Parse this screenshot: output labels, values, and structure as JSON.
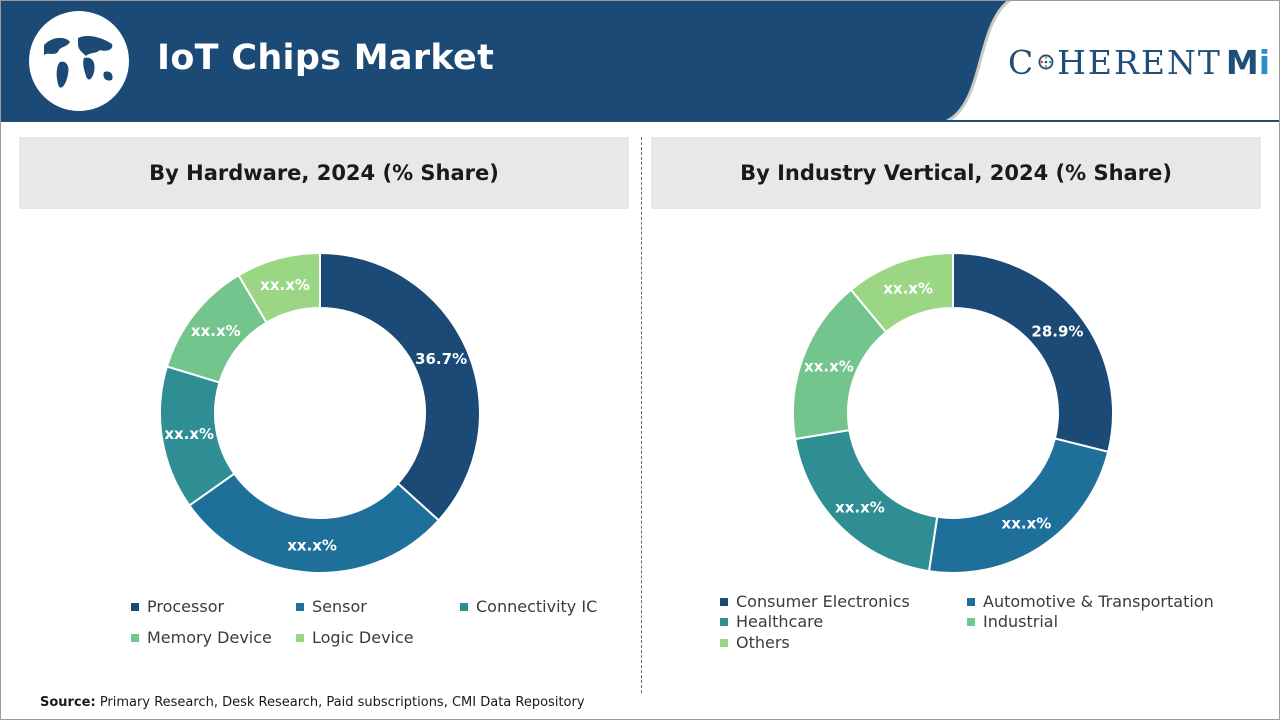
{
  "header": {
    "title": "IoT Chips Market",
    "logo_text_left": "C",
    "logo_text_right": "HERENT",
    "logo_mi_m": "M",
    "logo_mi_i": "i",
    "band_color": "#1b4a77",
    "globe_icon": "world-globe-icon"
  },
  "chart_data": [
    {
      "type": "pie",
      "title": "By Hardware, 2024 (% Share)",
      "categories": [
        "Processor",
        "Sensor",
        "Connectivity IC",
        "Memory Device",
        "Logic Device"
      ],
      "values": [
        36.7,
        28.5,
        14.5,
        11.8,
        8.5
      ],
      "labels": [
        "36.7%",
        "xx.x%",
        "xx.x%",
        "xx.x%",
        "xx.x%"
      ],
      "colors": [
        "#1b4a77",
        "#1f6f9b",
        "#2e8e93",
        "#74c48e",
        "#9bd685"
      ],
      "legend_position": "bottom"
    },
    {
      "type": "pie",
      "title": "By Industry Vertical, 2024 (% Share)",
      "categories": [
        "Consumer Electronics",
        "Automotive & Transportation",
        "Healthcare",
        "Industrial",
        "Others"
      ],
      "values": [
        28.9,
        23.5,
        20.0,
        16.6,
        11.0
      ],
      "labels": [
        "28.9%",
        "xx.x%",
        "xx.x%",
        "xx.x%",
        "xx.x%"
      ],
      "colors": [
        "#1b4a77",
        "#1f6f9b",
        "#2e8e93",
        "#74c48e",
        "#9bd685"
      ],
      "legend_position": "bottom"
    }
  ],
  "source": {
    "label": "Source:",
    "text": " Primary Research, Desk Research, Paid subscriptions, CMI Data Repository"
  }
}
